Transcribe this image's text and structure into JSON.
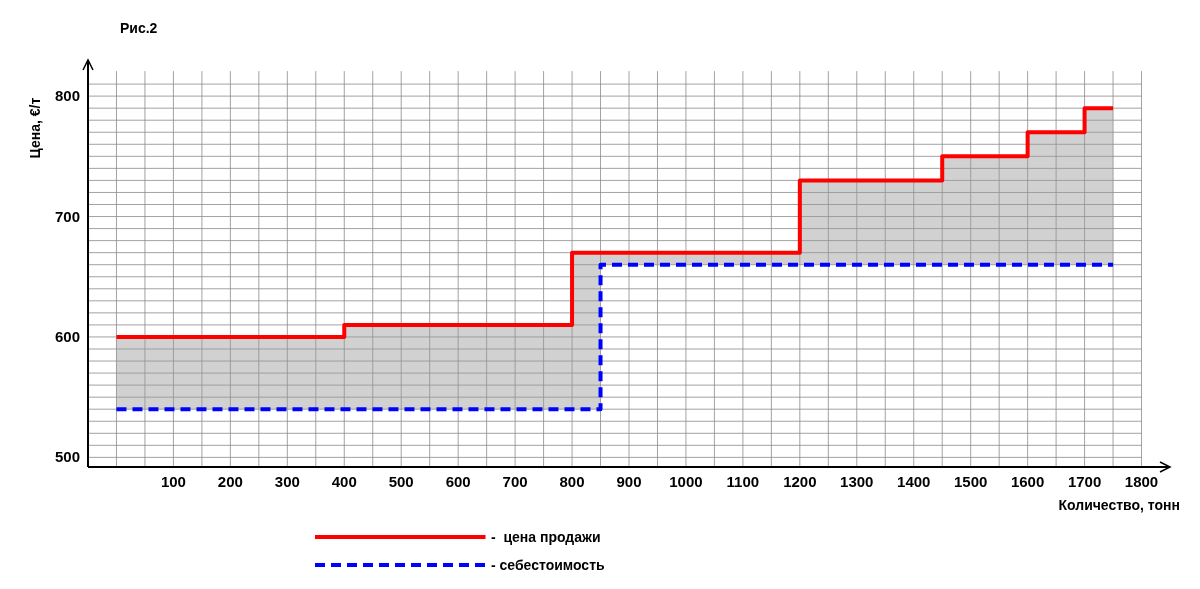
{
  "chart_data": {
    "type": "step",
    "title": "Рис.2",
    "xlabel": "Количество, тонн",
    "ylabel": "Цена, €/т",
    "x": [
      0,
      400,
      800,
      850,
      1200,
      1450,
      1600,
      1700,
      1750
    ],
    "series": [
      {
        "name": "-  цена продажи",
        "color": "#ff0000",
        "line_style": "solid",
        "values": [
          600,
          610,
          670,
          670,
          730,
          750,
          770,
          790,
          790
        ],
        "lower": [
          540,
          540,
          540,
          660,
          660,
          660,
          660,
          660,
          660
        ],
        "upper": [
          600,
          610,
          670,
          670,
          730,
          750,
          770,
          790,
          790
        ]
      },
      {
        "name": "- себестоимость",
        "color": "#0000ff",
        "line_style": "dashed",
        "values": [
          540,
          540,
          540,
          660,
          660,
          660,
          660,
          660,
          660
        ]
      }
    ],
    "xlim": [
      -50,
      1850
    ],
    "xticks": [
      {
        "value": 0,
        "label": null
      },
      {
        "value": 50,
        "label": null
      },
      100,
      {
        "value": 150,
        "label": null
      },
      200,
      {
        "value": 250,
        "label": null
      },
      300,
      {
        "value": 350,
        "label": null
      },
      400,
      {
        "value": 450,
        "label": null
      },
      500,
      {
        "value": 550,
        "label": null
      },
      600,
      {
        "value": 650,
        "label": null
      },
      700,
      {
        "value": 750,
        "label": null
      },
      800,
      {
        "value": 850,
        "label": null
      },
      900,
      {
        "value": 950,
        "label": null
      },
      1000,
      {
        "value": 1050,
        "label": null
      },
      1100,
      {
        "value": 1150,
        "label": null
      },
      1200,
      {
        "value": 1250,
        "label": null
      },
      1300,
      {
        "value": 1350,
        "label": null
      },
      1400,
      {
        "value": 1450,
        "label": null
      },
      1500,
      {
        "value": 1550,
        "label": null
      },
      1600,
      {
        "value": 1650,
        "label": null
      },
      1700,
      {
        "value": 1750,
        "label": null
      },
      1800
    ],
    "ylim": [
      492,
      830
    ],
    "yticks": [
      500,
      {
        "value": 510,
        "label": null
      },
      {
        "value": 520,
        "label": null
      },
      {
        "value": 530,
        "label": null
      },
      {
        "value": 540,
        "label": null
      },
      {
        "value": 550,
        "label": null
      },
      {
        "value": 560,
        "label": null
      },
      {
        "value": 570,
        "label": null
      },
      {
        "value": 580,
        "label": null
      },
      {
        "value": 590,
        "label": null
      },
      600,
      {
        "value": 610,
        "label": null
      },
      {
        "value": 620,
        "label": null
      },
      {
        "value": 630,
        "label": null
      },
      {
        "value": 640,
        "label": null
      },
      {
        "value": 650,
        "label": null
      },
      {
        "value": 660,
        "label": null
      },
      {
        "value": 670,
        "label": null
      },
      {
        "value": 680,
        "label": null
      },
      {
        "value": 690,
        "label": null
      },
      700,
      {
        "value": 710,
        "label": null
      },
      {
        "value": 720,
        "label": null
      },
      {
        "value": 730,
        "label": null
      },
      {
        "value": 740,
        "label": null
      },
      {
        "value": 750,
        "label": null
      },
      {
        "value": 760,
        "label": null
      },
      {
        "value": 770,
        "label": null
      },
      {
        "value": 780,
        "label": null
      },
      {
        "value": 790,
        "label": null
      },
      800,
      {
        "value": 810,
        "label": null
      }
    ],
    "grid": true,
    "legend": "bottom",
    "marker": "none"
  }
}
